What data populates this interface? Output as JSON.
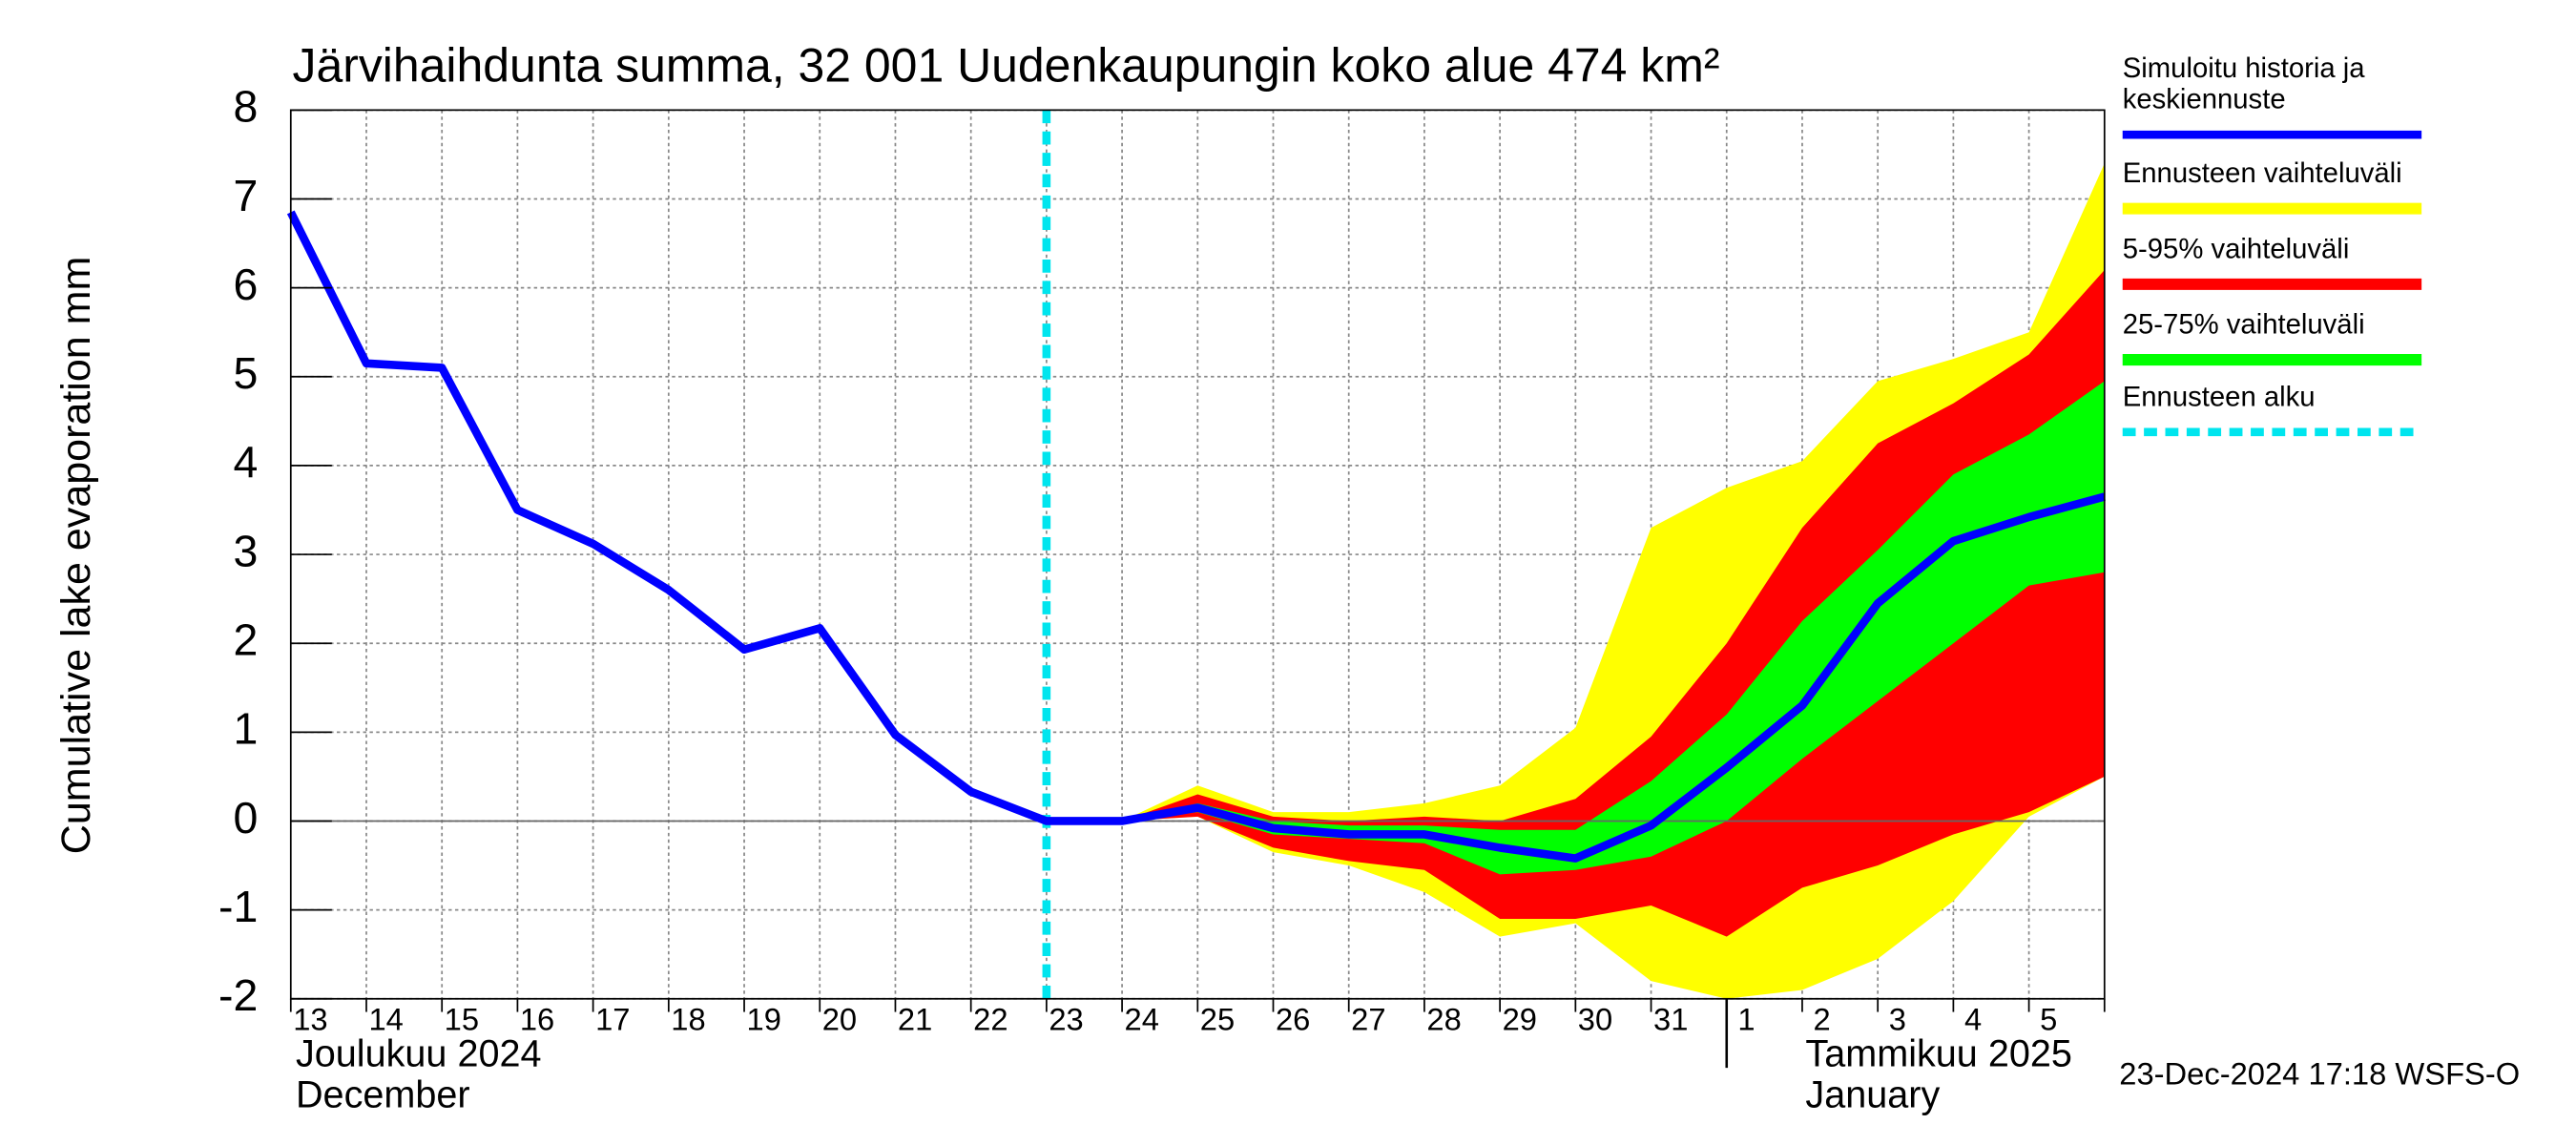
{
  "chart_data": {
    "type": "line",
    "title": "Järvihaihdunta summa, 32 001 Uudenkaupungin koko alue 474 km²",
    "y_label": "Cumulative lake evaporation   mm",
    "categories": [
      "13",
      "14",
      "15",
      "16",
      "17",
      "18",
      "19",
      "20",
      "21",
      "22",
      "23",
      "24",
      "25",
      "26",
      "27",
      "28",
      "29",
      "30",
      "31",
      "1",
      "2",
      "3",
      "4",
      "5",
      null
    ],
    "month_labels": [
      {
        "at": "13",
        "lines": [
          "Joulukuu  2024",
          "December"
        ]
      },
      {
        "at": "1",
        "lines": [
          "Tammikuu  2025",
          "January"
        ]
      }
    ],
    "series": [
      {
        "name": "Simuloitu historia ja keskiennuste",
        "color": "#0000ff",
        "values": [
          6.85,
          5.15,
          5.1,
          3.5,
          3.12,
          2.6,
          1.93,
          2.17,
          0.97,
          0.33,
          0,
          0,
          0.15,
          -0.08,
          -0.15,
          -0.15,
          -0.3,
          -0.42,
          -0.05,
          0.6,
          1.3,
          2.45,
          3.15,
          3.42,
          3.65
        ]
      }
    ],
    "bands": [
      {
        "name": "Ennusteen vaihteluväli",
        "color": "#ffff00",
        "upper": [
          null,
          null,
          null,
          null,
          null,
          null,
          null,
          null,
          null,
          null,
          0,
          0,
          0.4,
          0.1,
          0.1,
          0.2,
          0.4,
          1.05,
          3.3,
          3.75,
          4.05,
          4.95,
          5.2,
          5.5,
          7.4
        ],
        "lower": [
          null,
          null,
          null,
          null,
          null,
          null,
          null,
          null,
          null,
          null,
          0,
          0,
          0.05,
          -0.35,
          -0.5,
          -0.8,
          -1.3,
          -1.15,
          -1.8,
          -2.0,
          -1.9,
          -1.55,
          -0.9,
          0.05,
          0.5
        ]
      },
      {
        "name": "5-95% vaihteluväli",
        "color": "#ff0000",
        "upper": [
          null,
          null,
          null,
          null,
          null,
          null,
          null,
          null,
          null,
          null,
          0,
          0,
          0.3,
          0.05,
          0,
          0.05,
          0,
          0.25,
          0.95,
          2.0,
          3.3,
          4.25,
          4.7,
          5.25,
          6.2
        ],
        "lower": [
          null,
          null,
          null,
          null,
          null,
          null,
          null,
          null,
          null,
          null,
          0,
          0,
          0.05,
          -0.3,
          -0.45,
          -0.55,
          -1.1,
          -1.1,
          -0.95,
          -1.3,
          -0.75,
          -0.5,
          -0.15,
          0.1,
          0.5
        ]
      },
      {
        "name": "25-75% vaihteluväli",
        "color": "#00ff00",
        "upper": [
          null,
          null,
          null,
          null,
          null,
          null,
          null,
          null,
          null,
          null,
          0,
          0,
          0.2,
          0,
          -0.05,
          -0.05,
          -0.1,
          -0.1,
          0.45,
          1.2,
          2.25,
          3.05,
          3.9,
          4.35,
          4.95
        ],
        "lower": [
          null,
          null,
          null,
          null,
          null,
          null,
          null,
          null,
          null,
          null,
          0,
          0,
          0.1,
          -0.15,
          -0.2,
          -0.25,
          -0.6,
          -0.55,
          -0.4,
          0,
          0.7,
          1.35,
          2.0,
          2.65,
          2.8
        ]
      }
    ],
    "forecast_start": {
      "name": "Ennusteen alku",
      "color": "#00e5ee",
      "at": "23"
    },
    "ylim": [
      -2,
      8
    ],
    "yticks": [
      -2,
      -1,
      0,
      1,
      2,
      3,
      4,
      5,
      6,
      7,
      8
    ],
    "grid": true,
    "timestamp": "23-Dec-2024 17:18 WSFS-O"
  }
}
